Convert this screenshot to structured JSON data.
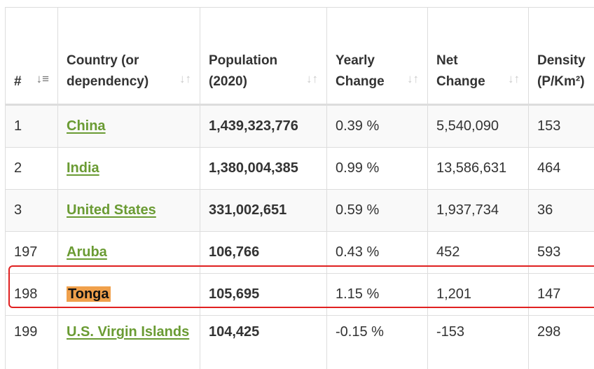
{
  "table": {
    "headers": {
      "rank": "#",
      "country": "Country (or dependency)",
      "population": "Population (2020)",
      "yearly_change": "Yearly Change",
      "net_change": "Net Change",
      "density": "Density (P/Km²)"
    },
    "rows": [
      {
        "rank": "1",
        "country": "China",
        "population": "1,439,323,776",
        "yearly_change": "0.39 %",
        "net_change": "5,540,090",
        "density": "153"
      },
      {
        "rank": "2",
        "country": "India",
        "population": "1,380,004,385",
        "yearly_change": "0.99 %",
        "net_change": "13,586,631",
        "density": "464"
      },
      {
        "rank": "3",
        "country": "United States",
        "population": "331,002,651",
        "yearly_change": "0.59 %",
        "net_change": "1,937,734",
        "density": "36"
      },
      {
        "rank": "197",
        "country": "Aruba",
        "population": "106,766",
        "yearly_change": "0.43 %",
        "net_change": "452",
        "density": "593"
      },
      {
        "rank": "198",
        "country": "Tonga",
        "population": "105,695",
        "yearly_change": "1.15 %",
        "net_change": "1,201",
        "density": "147"
      },
      {
        "rank": "199",
        "country": "U.S. Virgin Islands",
        "population": "104,425",
        "yearly_change": "-0.15 %",
        "net_change": "-153",
        "density": "298"
      }
    ]
  },
  "highlighted_country": "Tonga",
  "colors": {
    "link": "#6a9b33",
    "highlight_bg": "#f0a04b",
    "highlight_border": "#e02020"
  }
}
